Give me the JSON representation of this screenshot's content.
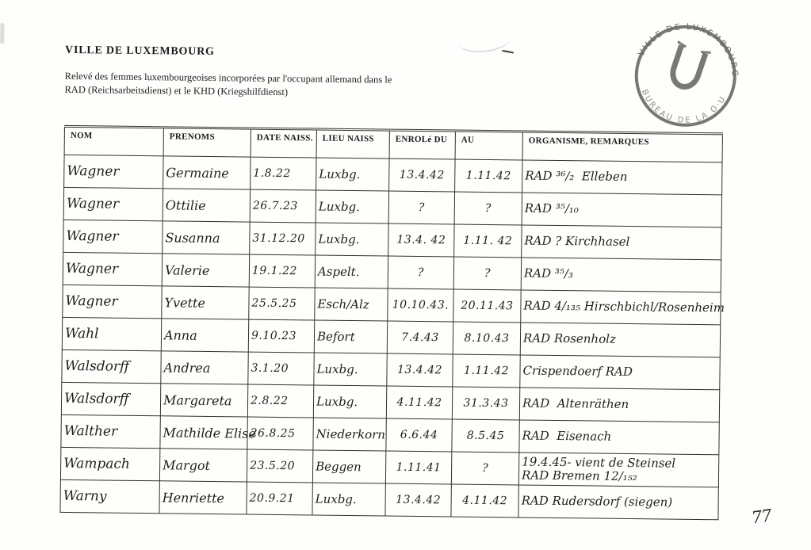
{
  "document": {
    "title": "VILLE DE LUXEMBOURG",
    "subtitle": "Relevé des femmes luxembourgeoises incorporées par l'occupant allemand dans le RAD (Reichsarbeitsdienst) et le KHD (Kriegshilfdienst)",
    "page_number": "77"
  },
  "stamp": {
    "icon": "horseshoe-u-icon",
    "arc_top": "· VILLE DE LUXEMBOURG ·",
    "arc_bottom": "BUREAU DE LA   O·U",
    "ink_color": "#55534c"
  },
  "table": {
    "headers": [
      "NOM",
      "PRENOMS",
      "DATE NAISS.",
      "LIEU NAISS",
      "ENROLé DU",
      "AU",
      "ORGANISME, REMARQUES"
    ],
    "column_keys": [
      "nom",
      "prenoms",
      "date_naiss",
      "lieu_naiss",
      "enrole_du",
      "au",
      "organisme"
    ],
    "rows": [
      {
        "nom": "Wagner",
        "prenoms": "Germaine",
        "date_naiss": "1.8.22",
        "lieu_naiss": "Luxbg.",
        "enrole_du": "13.4.42",
        "au": "1.11.42",
        "organisme": "RAD ³⁶/₂  Elleben"
      },
      {
        "nom": "Wagner",
        "prenoms": "Ottilie",
        "date_naiss": "26.7.23",
        "lieu_naiss": "Luxbg.",
        "enrole_du": "?",
        "au": "?",
        "organisme": "RAD ³⁵/₁₀"
      },
      {
        "nom": "Wagner",
        "prenoms": "Susanna",
        "date_naiss": "31.12.20",
        "lieu_naiss": "Luxbg.",
        "enrole_du": "13.4. 42",
        "au": "1.11. 42",
        "organisme": "RAD ? Kirchhasel"
      },
      {
        "nom": "Wagner",
        "prenoms": "Valerie",
        "date_naiss": "19.1.22",
        "lieu_naiss": "Aspelt.",
        "enrole_du": "?",
        "au": "?",
        "organisme": "RAD ³⁵/₃"
      },
      {
        "nom": "Wagner",
        "prenoms": "Yvette",
        "date_naiss": "25.5.25",
        "lieu_naiss": "Esch/Alz",
        "enrole_du": "10.10.43.",
        "au": "20.11.43",
        "organisme": "RAD 4/₁₃₅ Hirschbichl/Rosenheim"
      },
      {
        "nom": "Wahl",
        "prenoms": "Anna",
        "date_naiss": "9.10.23",
        "lieu_naiss": "Befort",
        "enrole_du": "7.4.43",
        "au": "8.10.43",
        "organisme": "RAD Rosenholz"
      },
      {
        "nom": "Walsdorff",
        "prenoms": "Andrea",
        "date_naiss": "3.1.20",
        "lieu_naiss": "Luxbg.",
        "enrole_du": "13.4.42",
        "au": "1.11.42",
        "organisme": "Crispendoerf RAD"
      },
      {
        "nom": "Walsdorff",
        "prenoms": "Margareta",
        "date_naiss": "2.8.22",
        "lieu_naiss": "Luxbg.",
        "enrole_du": "4.11.42",
        "au": "31.3.43",
        "organisme": "RAD  Altenräthen"
      },
      {
        "nom": "Walther",
        "prenoms": "Mathilde Elise",
        "date_naiss": "26.8.25",
        "lieu_naiss": "Niederkorn",
        "enrole_du": "6.6.44",
        "au": "8.5.45",
        "organisme": "RAD  Eisenach"
      },
      {
        "nom": "Wampach",
        "prenoms": "Margot",
        "date_naiss": "23.5.20",
        "lieu_naiss": "Beggen",
        "enrole_du": "1.11.41",
        "au": "?",
        "organisme": "19.4.45- vient de Steinsel\nRAD Bremen 12/₁₅₂"
      },
      {
        "nom": "Warny",
        "prenoms": "Henriette",
        "date_naiss": "20.9.21",
        "lieu_naiss": "Luxbg.",
        "enrole_du": "13.4.42",
        "au": "4.11.42",
        "organisme": "RAD Rudersdorf (siegen)"
      }
    ]
  }
}
